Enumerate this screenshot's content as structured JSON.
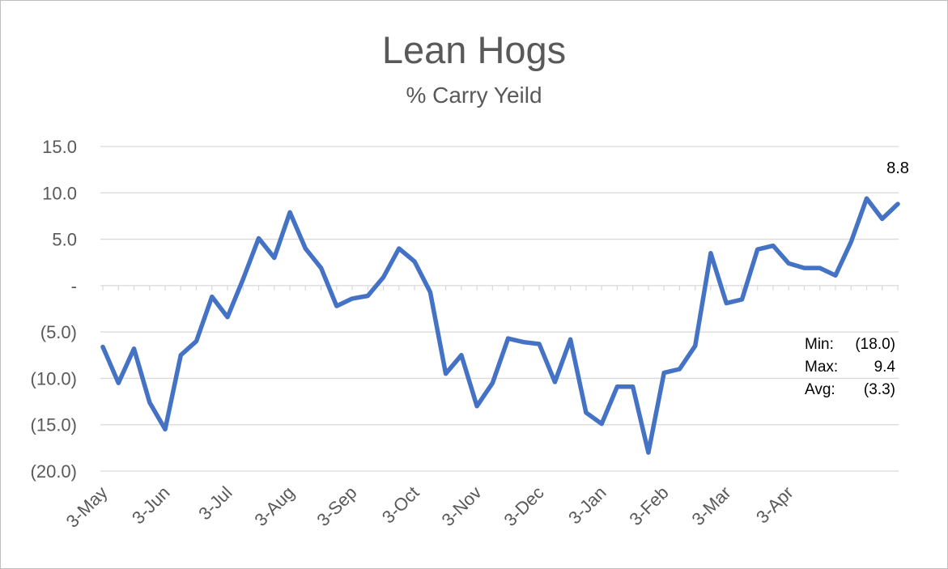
{
  "chart_data": {
    "type": "line",
    "title": "Lean Hogs",
    "subtitle": "% Carry Yeild",
    "ylim": [
      -20,
      15
    ],
    "y_ticks": [
      {
        "value": 15,
        "label": "15.0"
      },
      {
        "value": 10,
        "label": "10.0"
      },
      {
        "value": 5,
        "label": "5.0"
      },
      {
        "value": 0,
        "label": "-"
      },
      {
        "value": -5,
        "label": "(5.0)"
      },
      {
        "value": -10,
        "label": "(10.0)"
      },
      {
        "value": -15,
        "label": "(15.0)"
      },
      {
        "value": -20,
        "label": "(20.0)"
      }
    ],
    "x_ticks": [
      {
        "index": 0,
        "label": "3-May"
      },
      {
        "index": 4,
        "label": "3-Jun"
      },
      {
        "index": 8,
        "label": "3-Jul"
      },
      {
        "index": 12,
        "label": "3-Aug"
      },
      {
        "index": 16,
        "label": "3-Sep"
      },
      {
        "index": 20,
        "label": "3-Oct"
      },
      {
        "index": 24,
        "label": "3-Nov"
      },
      {
        "index": 28,
        "label": "3-Dec"
      },
      {
        "index": 32,
        "label": "3-Jan"
      },
      {
        "index": 36,
        "label": "3-Feb"
      },
      {
        "index": 40,
        "label": "3-Mar"
      },
      {
        "index": 44,
        "label": "3-Apr"
      }
    ],
    "series": [
      {
        "color": "#4472c4",
        "values": [
          -6.6,
          -10.5,
          -6.8,
          -12.6,
          -15.5,
          -7.5,
          -6.0,
          -1.2,
          -3.4,
          0.7,
          5.1,
          3.0,
          7.9,
          4.0,
          1.9,
          -2.2,
          -1.4,
          -1.1,
          0.9,
          4.0,
          2.6,
          -0.7,
          -9.5,
          -7.5,
          -13.0,
          -10.5,
          -5.7,
          -6.1,
          -6.3,
          -10.4,
          -5.8,
          -13.7,
          -14.9,
          -10.9,
          -10.9,
          -18.0,
          -9.4,
          -9.0,
          -6.5,
          3.5,
          -1.9,
          -1.5,
          3.9,
          4.3,
          2.4,
          1.9,
          1.9,
          1.1,
          4.7,
          9.4,
          7.2,
          8.8
        ]
      }
    ],
    "data_labels": [
      {
        "index": 51,
        "text": "8.8"
      }
    ],
    "stats": [
      {
        "label": "Min:",
        "value": "(18.0)"
      },
      {
        "label": "Max:",
        "value": "9.4"
      },
      {
        "label": "Avg:",
        "value": "(3.3)"
      }
    ],
    "grid": true,
    "legend": "none"
  }
}
